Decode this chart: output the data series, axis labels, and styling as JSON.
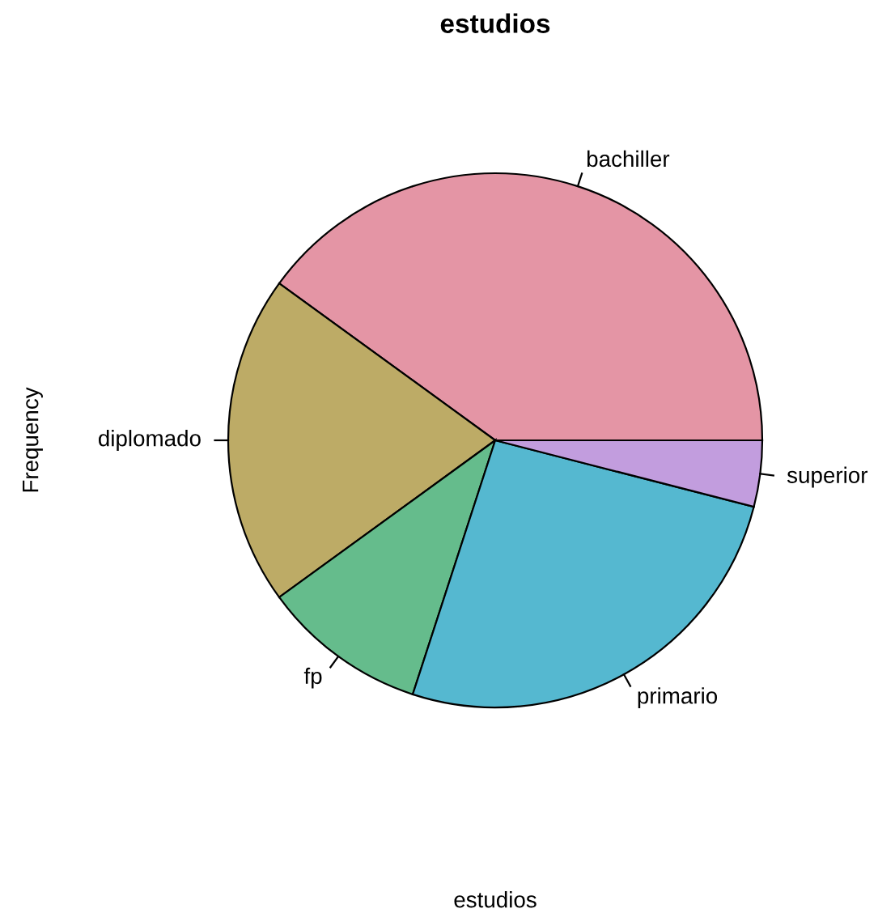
{
  "chart_data": {
    "type": "pie",
    "title": "estudios",
    "xlabel": "estudios",
    "ylabel": "Frequency",
    "categories": [
      "bachiller",
      "diplomado",
      "fp",
      "primario",
      "superior"
    ],
    "values": [
      40,
      20,
      10,
      26,
      4
    ],
    "colors": [
      "#e495a5",
      "#bdab66",
      "#65bc8c",
      "#55b8d0",
      "#c29dde"
    ]
  }
}
